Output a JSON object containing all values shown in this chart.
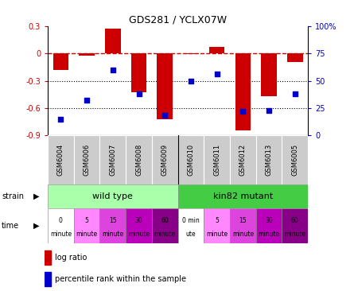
{
  "title": "GDS281 / YCLX07W",
  "samples": [
    "GSM6004",
    "GSM6006",
    "GSM6007",
    "GSM6008",
    "GSM6009",
    "GSM6010",
    "GSM6011",
    "GSM6012",
    "GSM6013",
    "GSM6005"
  ],
  "log_ratio": [
    -0.18,
    -0.02,
    0.27,
    -0.43,
    -0.72,
    -0.01,
    0.07,
    -0.85,
    -0.47,
    -0.09
  ],
  "percentile": [
    15,
    32,
    60,
    38,
    18,
    50,
    56,
    22,
    23,
    38
  ],
  "ylim": [
    -0.9,
    0.3
  ],
  "yticks_left": [
    -0.9,
    -0.6,
    -0.3,
    0.0,
    0.3
  ],
  "yticks_right": [
    0,
    25,
    50,
    75,
    100
  ],
  "bar_color": "#cc0000",
  "dot_color": "#0000cc",
  "dashed_color": "#cc0000",
  "sample_box_color": "#cccccc",
  "strain_wt_color": "#aaffaa",
  "strain_mut_color": "#44cc44",
  "time_colors_wt": [
    "#ffffff",
    "#ff88ff",
    "#dd44dd",
    "#bb00bb",
    "#880088"
  ],
  "time_colors_mut": [
    "#ffffff",
    "#ff88ff",
    "#dd44dd",
    "#bb00bb",
    "#880088"
  ],
  "strain_labels": [
    "wild type",
    "kin82 mutant"
  ],
  "time_labels_top": [
    "0",
    "5",
    "15",
    "30",
    "60",
    "0 min",
    "5",
    "15",
    "30",
    "60"
  ],
  "time_labels_bot": [
    "minute",
    "minute",
    "minute",
    "minute",
    "minute",
    "ute",
    "minute",
    "minute",
    "minute",
    "minute"
  ],
  "legend_log_ratio": "log ratio",
  "legend_percentile": "percentile rank within the sample"
}
